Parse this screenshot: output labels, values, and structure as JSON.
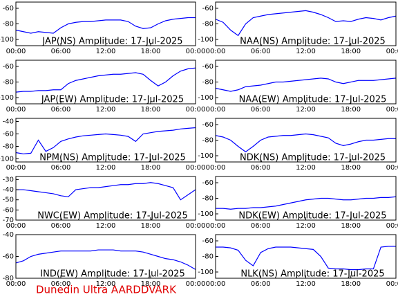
{
  "chart_data": [
    {
      "type": "line",
      "title": "JAP(NS) Amplitude: 17-Jul-2025",
      "color": "#0000ff",
      "x": [
        0,
        1,
        2,
        3,
        4,
        5,
        6,
        7,
        8,
        9,
        10,
        11,
        12,
        13,
        14,
        15,
        16,
        17,
        18,
        19,
        20,
        21,
        22,
        23,
        24
      ],
      "values": [
        -88,
        -90,
        -92,
        -90,
        -91,
        -92,
        -85,
        -80,
        -78,
        -77,
        -77,
        -76,
        -75,
        -75,
        -75,
        -77,
        -83,
        -86,
        -85,
        -80,
        -76,
        -74,
        -73,
        -72,
        -72
      ],
      "xlim": [
        0,
        24
      ],
      "xticks": [
        {
          "value": 0,
          "label": "00:00"
        },
        {
          "value": 6,
          "label": "06:00"
        },
        {
          "value": 12,
          "label": "12:00"
        },
        {
          "value": 18,
          "label": "18:00"
        },
        {
          "value": 24,
          "label": "00:00"
        }
      ],
      "ylim": [
        -108,
        -52
      ],
      "yticks": [
        -60,
        -80,
        -100
      ]
    },
    {
      "type": "line",
      "title": "NAA(NS) Amplitude: 17-Jul-2025",
      "color": "#0000ff",
      "x": [
        0,
        1,
        2,
        3,
        4,
        5,
        6,
        7,
        8,
        9,
        10,
        11,
        12,
        13,
        14,
        15,
        16,
        17,
        18,
        19,
        20,
        21,
        22,
        23,
        24
      ],
      "values": [
        -74,
        -78,
        -88,
        -95,
        -80,
        -72,
        -70,
        -68,
        -67,
        -66,
        -65,
        -64,
        -63,
        -65,
        -68,
        -72,
        -77,
        -76,
        -77,
        -74,
        -72,
        -73,
        -75,
        -72,
        -70
      ],
      "xlim": [
        0,
        24
      ],
      "xticks": [
        {
          "value": 0,
          "label": "00:00"
        },
        {
          "value": 6,
          "label": "06:00"
        },
        {
          "value": 12,
          "label": "12:00"
        },
        {
          "value": 18,
          "label": "18:00"
        },
        {
          "value": 24,
          "label": "00:00"
        }
      ],
      "ylim": [
        -108,
        -52
      ],
      "yticks": [
        -60,
        -80,
        -100
      ]
    },
    {
      "type": "line",
      "title": "JAP(EW) Amplitude: 17-Jul-2025",
      "color": "#0000ff",
      "x": [
        0,
        1,
        2,
        3,
        4,
        5,
        6,
        7,
        8,
        9,
        10,
        11,
        12,
        13,
        14,
        15,
        16,
        17,
        18,
        19,
        20,
        21,
        22,
        23,
        24
      ],
      "values": [
        -93,
        -92,
        -92,
        -91,
        -91,
        -90,
        -90,
        -82,
        -78,
        -76,
        -74,
        -72,
        -71,
        -70,
        -70,
        -69,
        -68,
        -70,
        -78,
        -85,
        -80,
        -72,
        -66,
        -63,
        -62
      ],
      "xlim": [
        0,
        24
      ],
      "xticks": [
        {
          "value": 0,
          "label": "00:00"
        },
        {
          "value": 6,
          "label": "06:00"
        },
        {
          "value": 12,
          "label": "12:00"
        },
        {
          "value": 18,
          "label": "18:00"
        },
        {
          "value": 24,
          "label": "00:00"
        }
      ],
      "ylim": [
        -108,
        -52
      ],
      "yticks": [
        -60,
        -80,
        -100
      ]
    },
    {
      "type": "line",
      "title": "NAA(EW) Amplitude: 17-Jul-2025",
      "color": "#0000ff",
      "x": [
        0,
        1,
        2,
        3,
        4,
        5,
        6,
        7,
        8,
        9,
        10,
        11,
        12,
        13,
        14,
        15,
        16,
        17,
        18,
        19,
        20,
        21,
        22,
        23,
        24
      ],
      "values": [
        -88,
        -90,
        -92,
        -90,
        -86,
        -85,
        -84,
        -82,
        -80,
        -80,
        -79,
        -78,
        -77,
        -76,
        -75,
        -76,
        -80,
        -82,
        -80,
        -78,
        -78,
        -78,
        -77,
        -76,
        -75
      ],
      "xlim": [
        0,
        24
      ],
      "xticks": [
        {
          "value": 0,
          "label": "00:00"
        },
        {
          "value": 6,
          "label": "06:00"
        },
        {
          "value": 12,
          "label": "12:00"
        },
        {
          "value": 18,
          "label": "18:00"
        },
        {
          "value": 24,
          "label": "00:00"
        }
      ],
      "ylim": [
        -108,
        -52
      ],
      "yticks": [
        -60,
        -80,
        -100
      ]
    },
    {
      "type": "line",
      "title": "NPM(NS) Amplitude: 17-Jul-2025",
      "color": "#0000ff",
      "x": [
        0,
        1,
        2,
        3,
        4,
        5,
        6,
        7,
        8,
        9,
        10,
        11,
        12,
        13,
        14,
        15,
        16,
        17,
        18,
        19,
        20,
        21,
        22,
        23,
        24
      ],
      "values": [
        -90,
        -92,
        -91,
        -70,
        -88,
        -82,
        -72,
        -68,
        -65,
        -63,
        -62,
        -61,
        -60,
        -61,
        -62,
        -64,
        -72,
        -60,
        -58,
        -56,
        -55,
        -54,
        -52,
        -51,
        -50
      ],
      "xlim": [
        0,
        24
      ],
      "xticks": [
        {
          "value": 0,
          "label": "00:00"
        },
        {
          "value": 6,
          "label": "06:00"
        },
        {
          "value": 12,
          "label": "12:00"
        },
        {
          "value": 18,
          "label": "18:00"
        },
        {
          "value": 24,
          "label": "00:00"
        }
      ],
      "ylim": [
        -105,
        -35
      ],
      "yticks": [
        -40,
        -60,
        -80,
        -100
      ]
    },
    {
      "type": "line",
      "title": "NDK(NS) Amplitude: 17-Jul-2025",
      "color": "#0000ff",
      "x": [
        0,
        1,
        2,
        3,
        4,
        5,
        6,
        7,
        8,
        9,
        10,
        11,
        12,
        13,
        14,
        15,
        16,
        17,
        18,
        19,
        20,
        21,
        22,
        23,
        24
      ],
      "values": [
        -74,
        -76,
        -80,
        -88,
        -95,
        -88,
        -80,
        -76,
        -75,
        -74,
        -74,
        -73,
        -72,
        -73,
        -75,
        -77,
        -84,
        -87,
        -85,
        -82,
        -80,
        -80,
        -79,
        -78,
        -78
      ],
      "xlim": [
        0,
        24
      ],
      "xticks": [
        {
          "value": 0,
          "label": "00:00"
        },
        {
          "value": 6,
          "label": "06:00"
        },
        {
          "value": 12,
          "label": "12:00"
        },
        {
          "value": 18,
          "label": "18:00"
        },
        {
          "value": 24,
          "label": "00:00"
        }
      ],
      "ylim": [
        -108,
        -52
      ],
      "yticks": [
        -60,
        -80,
        -100
      ]
    },
    {
      "type": "line",
      "title": "NWC(EW) Amplitude: 17-Jul-2025",
      "color": "#0000ff",
      "x": [
        0,
        1,
        2,
        3,
        4,
        5,
        6,
        7,
        8,
        9,
        10,
        11,
        12,
        13,
        14,
        15,
        16,
        17,
        18,
        19,
        20,
        21,
        22,
        23,
        24
      ],
      "values": [
        -40,
        -40,
        -41,
        -42,
        -43,
        -44,
        -46,
        -47,
        -40,
        -39,
        -38,
        -38,
        -37,
        -36,
        -35,
        -35,
        -34,
        -34,
        -33,
        -34,
        -36,
        -38,
        -50,
        -45,
        -40
      ],
      "xlim": [
        0,
        24
      ],
      "xticks": [
        {
          "value": 0,
          "label": "00:00"
        },
        {
          "value": 6,
          "label": "06:00"
        },
        {
          "value": 12,
          "label": "12:00"
        },
        {
          "value": 18,
          "label": "18:00"
        },
        {
          "value": 24,
          "label": "00:00"
        }
      ],
      "ylim": [
        -70,
        -27
      ],
      "yticks": [
        -30,
        -40,
        -50,
        -60,
        -70
      ]
    },
    {
      "type": "line",
      "title": "NDK(EW) Amplitude: 17-Jul-2025",
      "color": "#0000ff",
      "x": [
        0,
        1,
        2,
        3,
        4,
        5,
        6,
        7,
        8,
        9,
        10,
        11,
        12,
        13,
        14,
        15,
        16,
        17,
        18,
        19,
        20,
        21,
        22,
        23,
        24
      ],
      "values": [
        -93,
        -93,
        -94,
        -93,
        -93,
        -92,
        -92,
        -91,
        -90,
        -88,
        -86,
        -84,
        -82,
        -81,
        -80,
        -80,
        -81,
        -82,
        -82,
        -81,
        -80,
        -80,
        -79,
        -79,
        -78
      ],
      "xlim": [
        0,
        24
      ],
      "xticks": [
        {
          "value": 0,
          "label": "00:00"
        },
        {
          "value": 6,
          "label": "06:00"
        },
        {
          "value": 12,
          "label": "12:00"
        },
        {
          "value": 18,
          "label": "18:00"
        },
        {
          "value": 24,
          "label": "00:00"
        }
      ],
      "ylim": [
        -108,
        -52
      ],
      "yticks": [
        -60,
        -80,
        -100
      ]
    },
    {
      "type": "line",
      "title": "IND(EW) Amplitude: 17-Jul-2025",
      "color": "#0000ff",
      "x": [
        0,
        1,
        2,
        3,
        4,
        5,
        6,
        7,
        8,
        9,
        10,
        11,
        12,
        13,
        14,
        15,
        16,
        17,
        18,
        19,
        20,
        21,
        22,
        23,
        24
      ],
      "values": [
        -66,
        -64,
        -60,
        -58,
        -57,
        -56,
        -55,
        -55,
        -55,
        -55,
        -55,
        -54,
        -54,
        -54,
        -55,
        -55,
        -55,
        -56,
        -58,
        -60,
        -62,
        -63,
        -65,
        -68,
        -72
      ],
      "xlim": [
        0,
        24
      ],
      "xticks": [
        {
          "value": 0,
          "label": "00:00"
        },
        {
          "value": 6,
          "label": "06:00"
        },
        {
          "value": 12,
          "label": "12:00"
        },
        {
          "value": 18,
          "label": "18:00"
        },
        {
          "value": 24,
          "label": "00:00"
        }
      ],
      "ylim": [
        -80,
        -40
      ],
      "yticks": [
        -40,
        -60,
        -80
      ]
    },
    {
      "type": "line",
      "title": "NLK(NS) Amplitude: 17-Jul-2025",
      "color": "#0000ff",
      "x": [
        0,
        1,
        2,
        3,
        4,
        5,
        6,
        7,
        8,
        9,
        10,
        11,
        12,
        13,
        14,
        15,
        16,
        17,
        18,
        19,
        20,
        21,
        22,
        23,
        24
      ],
      "values": [
        -68,
        -68,
        -69,
        -72,
        -85,
        -92,
        -75,
        -70,
        -68,
        -68,
        -68,
        -69,
        -70,
        -71,
        -80,
        -95,
        -96,
        -96,
        -97,
        -97,
        -96,
        -96,
        -68,
        -67,
        -67
      ],
      "xlim": [
        0,
        24
      ],
      "xticks": [
        {
          "value": 0,
          "label": "00:00"
        },
        {
          "value": 6,
          "label": "06:00"
        },
        {
          "value": 12,
          "label": "12:00"
        },
        {
          "value": 18,
          "label": "18:00"
        },
        {
          "value": 24,
          "label": "00:00"
        }
      ],
      "ylim": [
        -108,
        -52
      ],
      "yticks": [
        -60,
        -80,
        -100
      ]
    }
  ],
  "footer": {
    "text": "Dunedin Ultra AARDDVARK"
  }
}
